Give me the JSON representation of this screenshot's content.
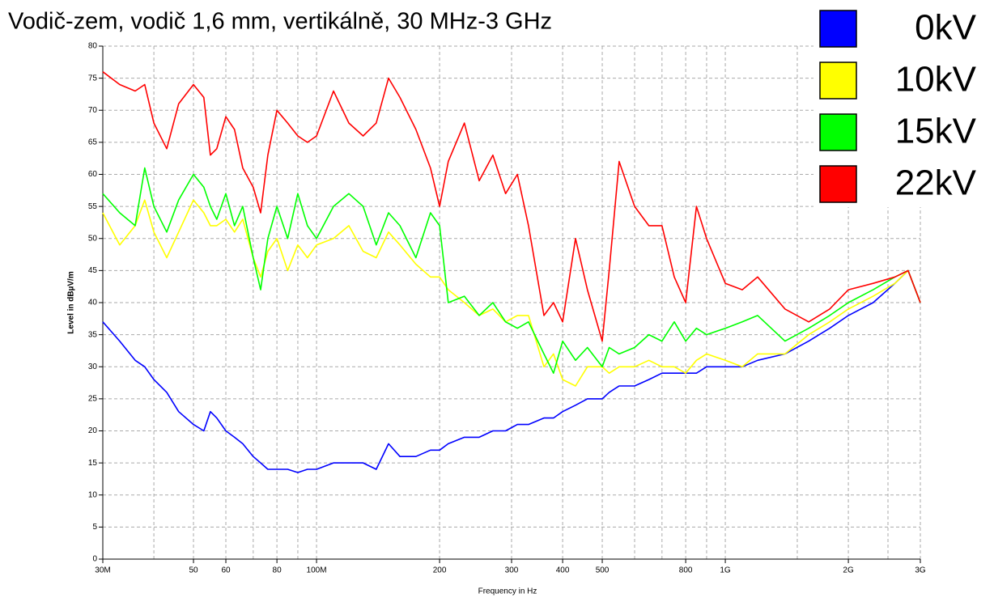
{
  "chart_data": {
    "type": "line",
    "title": "Vodič-zem, vodič 1,6 mm, vertikálně, 30 MHz-3 GHz",
    "x_label": "Frequency in Hz",
    "y_label": "Level in dBµV/m",
    "xscale": "log",
    "xlim": [
      30000000,
      3000000000
    ],
    "ylim": [
      0,
      80
    ],
    "yticks": [
      0,
      5,
      10,
      15,
      20,
      25,
      30,
      35,
      40,
      45,
      50,
      55,
      60,
      65,
      70,
      75,
      80
    ],
    "xticks": [
      {
        "value": 30000000,
        "label": "30M"
      },
      {
        "value": 50000000,
        "label": "50"
      },
      {
        "value": 60000000,
        "label": "60"
      },
      {
        "value": 80000000,
        "label": "80"
      },
      {
        "value": 100000000,
        "label": "100M"
      },
      {
        "value": 200000000,
        "label": "200"
      },
      {
        "value": 300000000,
        "label": "300"
      },
      {
        "value": 400000000,
        "label": "400"
      },
      {
        "value": 500000000,
        "label": "500"
      },
      {
        "value": 800000000,
        "label": "800"
      },
      {
        "value": 1000000000,
        "label": "1G"
      },
      {
        "value": 2000000000,
        "label": "2G"
      },
      {
        "value": 3000000000,
        "label": "3G"
      }
    ],
    "xminorticks": [
      40000000,
      70000000,
      90000000,
      600000000,
      700000000,
      900000000,
      1500000000,
      2500000000
    ],
    "grid": true,
    "legend": "top-right",
    "x": [
      30000000,
      33000000,
      36000000,
      38000000,
      40000000,
      43000000,
      46000000,
      50000000,
      53000000,
      55000000,
      57000000,
      60000000,
      63000000,
      66000000,
      70000000,
      73000000,
      76000000,
      80000000,
      85000000,
      90000000,
      95000000,
      100000000,
      110000000,
      120000000,
      130000000,
      140000000,
      150000000,
      160000000,
      175000000,
      190000000,
      200000000,
      210000000,
      230000000,
      250000000,
      270000000,
      290000000,
      310000000,
      330000000,
      360000000,
      380000000,
      400000000,
      430000000,
      460000000,
      500000000,
      520000000,
      550000000,
      600000000,
      650000000,
      700000000,
      750000000,
      800000000,
      850000000,
      900000000,
      1000000000,
      1100000000,
      1200000000,
      1400000000,
      1600000000,
      1800000000,
      2000000000,
      2300000000,
      2600000000,
      2800000000,
      3000000000
    ],
    "series": [
      {
        "name": "0kV",
        "color": "#0000ff",
        "values": [
          37,
          34,
          31,
          30,
          28,
          26,
          23,
          21,
          20,
          23,
          22,
          20,
          19,
          18,
          16,
          15,
          14,
          14,
          14,
          13.5,
          14,
          14,
          15,
          15,
          15,
          14,
          18,
          16,
          16,
          17,
          17,
          18,
          19,
          19,
          20,
          20,
          21,
          21,
          22,
          22,
          23,
          24,
          25,
          25,
          26,
          27,
          27,
          28,
          29,
          29,
          29,
          29,
          30,
          30,
          30,
          31,
          32,
          34,
          36,
          38,
          40,
          43,
          45,
          40
        ]
      },
      {
        "name": "10kV",
        "color": "#ffff00",
        "values": [
          54,
          49,
          52,
          56,
          51,
          47,
          51,
          56,
          54,
          52,
          52,
          53,
          51,
          53,
          47,
          44,
          48,
          50,
          45,
          49,
          47,
          49,
          50,
          52,
          48,
          47,
          51,
          49,
          46,
          44,
          44,
          42,
          40,
          38,
          39,
          37,
          38,
          38,
          30,
          32,
          28,
          27,
          30,
          30,
          29,
          30,
          30,
          31,
          30,
          30,
          29,
          31,
          32,
          31,
          30,
          32,
          32,
          35,
          37,
          39,
          41,
          43,
          45,
          40
        ]
      },
      {
        "name": "15kV",
        "color": "#00ff00",
        "values": [
          57,
          54,
          52,
          61,
          55,
          51,
          56,
          60,
          58,
          55,
          53,
          57,
          52,
          55,
          47,
          42,
          50,
          55,
          50,
          57,
          52,
          50,
          55,
          57,
          55,
          49,
          54,
          52,
          47,
          54,
          52,
          40,
          41,
          38,
          40,
          37,
          36,
          37,
          32,
          29,
          34,
          31,
          33,
          30,
          33,
          32,
          33,
          35,
          34,
          37,
          34,
          36,
          35,
          36,
          37,
          38,
          34,
          36,
          38,
          40,
          42,
          44,
          45,
          40
        ]
      },
      {
        "name": "22kV",
        "color": "#ff0000",
        "values": [
          76,
          74,
          73,
          74,
          68,
          64,
          71,
          74,
          72,
          63,
          64,
          69,
          67,
          61,
          58,
          54,
          63,
          70,
          68,
          66,
          65,
          66,
          73,
          68,
          66,
          68,
          75,
          72,
          67,
          61,
          55,
          62,
          68,
          59,
          63,
          57,
          60,
          52,
          38,
          40,
          37,
          50,
          42,
          34,
          45,
          62,
          55,
          52,
          52,
          44,
          40,
          55,
          50,
          43,
          42,
          44,
          39,
          37,
          39,
          42,
          43,
          44,
          45,
          40
        ]
      }
    ]
  }
}
